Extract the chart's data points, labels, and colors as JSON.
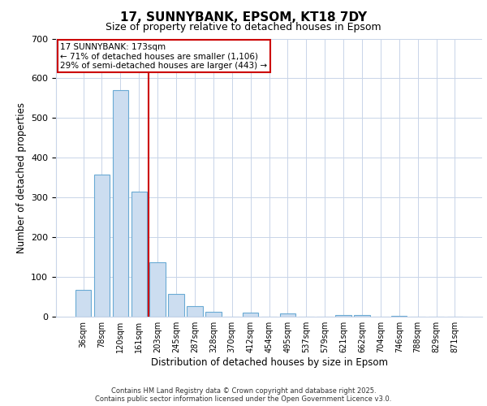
{
  "title_line1": "17, SUNNYBANK, EPSOM, KT18 7DY",
  "title_line2": "Size of property relative to detached houses in Epsom",
  "xlabel": "Distribution of detached houses by size in Epsom",
  "ylabel": "Number of detached properties",
  "bar_labels": [
    "36sqm",
    "78sqm",
    "120sqm",
    "161sqm",
    "203sqm",
    "245sqm",
    "287sqm",
    "328sqm",
    "370sqm",
    "412sqm",
    "454sqm",
    "495sqm",
    "537sqm",
    "579sqm",
    "621sqm",
    "662sqm",
    "704sqm",
    "746sqm",
    "788sqm",
    "829sqm",
    "871sqm"
  ],
  "bar_values": [
    68,
    358,
    570,
    315,
    137,
    57,
    26,
    13,
    0,
    10,
    0,
    8,
    0,
    0,
    5,
    5,
    0,
    2,
    0,
    0,
    0
  ],
  "bar_color": "#ccddf0",
  "bar_edge_color": "#6aaad4",
  "vline_color": "#cc0000",
  "annotation_title": "17 SUNNYBANK: 173sqm",
  "annotation_line1": "← 71% of detached houses are smaller (1,106)",
  "annotation_line2": "29% of semi-detached houses are larger (443) →",
  "annotation_box_edge": "#cc0000",
  "ylim": [
    0,
    700
  ],
  "yticks": [
    0,
    100,
    200,
    300,
    400,
    500,
    600,
    700
  ],
  "footer_line1": "Contains HM Land Registry data © Crown copyright and database right 2025.",
  "footer_line2": "Contains public sector information licensed under the Open Government Licence v3.0.",
  "background_color": "#ffffff",
  "grid_color": "#c8d4e8"
}
